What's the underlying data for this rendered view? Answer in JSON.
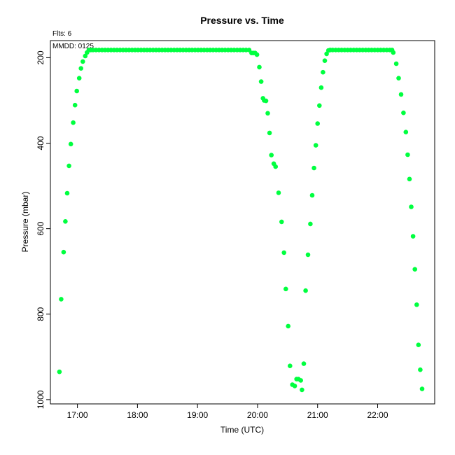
{
  "chart_data": {
    "type": "scatter",
    "title": "Pressure  vs. Time",
    "annotations": {
      "flights": "Flts: 6",
      "date": "MMDD: 0125"
    },
    "xlabel": "Time (UTC)",
    "ylabel": "Pressure (mbar)",
    "x_unit": "hours UTC",
    "xlim": [
      16.55,
      22.95
    ],
    "ylim": [
      1010,
      160
    ],
    "y_reversed": true,
    "xticks": [
      {
        "value": 17,
        "label": "17:00"
      },
      {
        "value": 18,
        "label": "18:00"
      },
      {
        "value": 19,
        "label": "19:00"
      },
      {
        "value": 20,
        "label": "20:00"
      },
      {
        "value": 21,
        "label": "21:00"
      },
      {
        "value": 22,
        "label": "22:00"
      }
    ],
    "yticks": [
      {
        "value": 200,
        "label": "200"
      },
      {
        "value": 400,
        "label": "400"
      },
      {
        "value": 600,
        "label": "600"
      },
      {
        "value": 800,
        "label": "800"
      },
      {
        "value": 1000,
        "label": "1000"
      }
    ],
    "grid": false,
    "marker_color": "#00ff3f",
    "series": [
      {
        "points": [
          [
            16.7,
            935
          ],
          [
            16.73,
            765
          ],
          [
            16.77,
            655
          ],
          [
            16.8,
            583
          ],
          [
            16.83,
            517
          ],
          [
            16.86,
            453
          ],
          [
            16.89,
            402
          ],
          [
            16.93,
            352
          ],
          [
            16.96,
            311
          ],
          [
            16.99,
            278
          ],
          [
            17.03,
            248
          ],
          [
            17.06,
            225
          ],
          [
            17.09,
            209
          ],
          [
            17.13,
            196
          ],
          [
            17.16,
            188
          ],
          [
            17.19,
            182
          ],
          [
            17.22,
            182
          ],
          [
            17.26,
            182
          ],
          [
            17.31,
            182
          ],
          [
            17.36,
            182
          ],
          [
            17.41,
            182
          ],
          [
            17.46,
            182
          ],
          [
            17.51,
            182
          ],
          [
            17.56,
            182
          ],
          [
            17.61,
            182
          ],
          [
            17.66,
            182
          ],
          [
            17.71,
            182
          ],
          [
            17.76,
            182
          ],
          [
            17.81,
            182
          ],
          [
            17.86,
            182
          ],
          [
            17.91,
            182
          ],
          [
            17.96,
            182
          ],
          [
            18.01,
            182
          ],
          [
            18.06,
            182
          ],
          [
            18.11,
            182
          ],
          [
            18.16,
            182
          ],
          [
            18.21,
            182
          ],
          [
            18.26,
            182
          ],
          [
            18.31,
            182
          ],
          [
            18.36,
            182
          ],
          [
            18.41,
            182
          ],
          [
            18.46,
            182
          ],
          [
            18.51,
            182
          ],
          [
            18.56,
            182
          ],
          [
            18.61,
            182
          ],
          [
            18.66,
            182
          ],
          [
            18.71,
            182
          ],
          [
            18.76,
            182
          ],
          [
            18.81,
            182
          ],
          [
            18.86,
            182
          ],
          [
            18.91,
            182
          ],
          [
            18.96,
            182
          ],
          [
            19.01,
            182
          ],
          [
            19.06,
            182
          ],
          [
            19.11,
            182
          ],
          [
            19.16,
            182
          ],
          [
            19.21,
            182
          ],
          [
            19.26,
            182
          ],
          [
            19.31,
            182
          ],
          [
            19.36,
            182
          ],
          [
            19.41,
            182
          ],
          [
            19.46,
            182
          ],
          [
            19.51,
            182
          ],
          [
            19.56,
            182
          ],
          [
            19.61,
            182
          ],
          [
            19.66,
            182
          ],
          [
            19.71,
            182
          ],
          [
            19.76,
            182
          ],
          [
            19.81,
            182
          ],
          [
            19.86,
            182
          ],
          [
            19.9,
            189
          ],
          [
            19.93,
            189
          ],
          [
            19.96,
            189
          ],
          [
            19.99,
            193
          ],
          [
            20.03,
            222
          ],
          [
            20.06,
            256
          ],
          [
            20.09,
            295
          ],
          [
            20.11,
            300
          ],
          [
            20.14,
            301
          ],
          [
            20.17,
            330
          ],
          [
            20.2,
            376
          ],
          [
            20.23,
            428
          ],
          [
            20.27,
            448
          ],
          [
            20.3,
            455
          ],
          [
            20.35,
            516
          ],
          [
            20.4,
            584
          ],
          [
            20.44,
            656
          ],
          [
            20.47,
            741
          ],
          [
            20.51,
            828
          ],
          [
            20.54,
            921
          ],
          [
            20.58,
            965
          ],
          [
            20.62,
            968
          ],
          [
            20.65,
            952
          ],
          [
            20.68,
            952
          ],
          [
            20.72,
            955
          ],
          [
            20.74,
            977
          ],
          [
            20.77,
            916
          ],
          [
            20.8,
            745
          ],
          [
            20.84,
            661
          ],
          [
            20.88,
            589
          ],
          [
            20.91,
            522
          ],
          [
            20.94,
            458
          ],
          [
            20.97,
            405
          ],
          [
            21.0,
            354
          ],
          [
            21.03,
            312
          ],
          [
            21.06,
            270
          ],
          [
            21.09,
            234
          ],
          [
            21.12,
            207
          ],
          [
            21.15,
            191
          ],
          [
            21.18,
            183
          ],
          [
            21.21,
            182
          ],
          [
            21.25,
            182
          ],
          [
            21.3,
            182
          ],
          [
            21.35,
            182
          ],
          [
            21.4,
            182
          ],
          [
            21.45,
            182
          ],
          [
            21.5,
            182
          ],
          [
            21.55,
            182
          ],
          [
            21.6,
            182
          ],
          [
            21.65,
            182
          ],
          [
            21.7,
            182
          ],
          [
            21.75,
            182
          ],
          [
            21.8,
            182
          ],
          [
            21.85,
            182
          ],
          [
            21.9,
            182
          ],
          [
            21.95,
            182
          ],
          [
            22.0,
            182
          ],
          [
            22.05,
            182
          ],
          [
            22.1,
            182
          ],
          [
            22.15,
            182
          ],
          [
            22.2,
            182
          ],
          [
            22.24,
            182
          ],
          [
            22.26,
            188
          ],
          [
            22.31,
            214
          ],
          [
            22.35,
            248
          ],
          [
            22.39,
            286
          ],
          [
            22.43,
            329
          ],
          [
            22.47,
            374
          ],
          [
            22.5,
            427
          ],
          [
            22.53,
            484
          ],
          [
            22.56,
            549
          ],
          [
            22.59,
            618
          ],
          [
            22.62,
            695
          ],
          [
            22.65,
            778
          ],
          [
            22.68,
            872
          ],
          [
            22.71,
            930
          ],
          [
            22.74,
            975
          ]
        ]
      }
    ]
  }
}
